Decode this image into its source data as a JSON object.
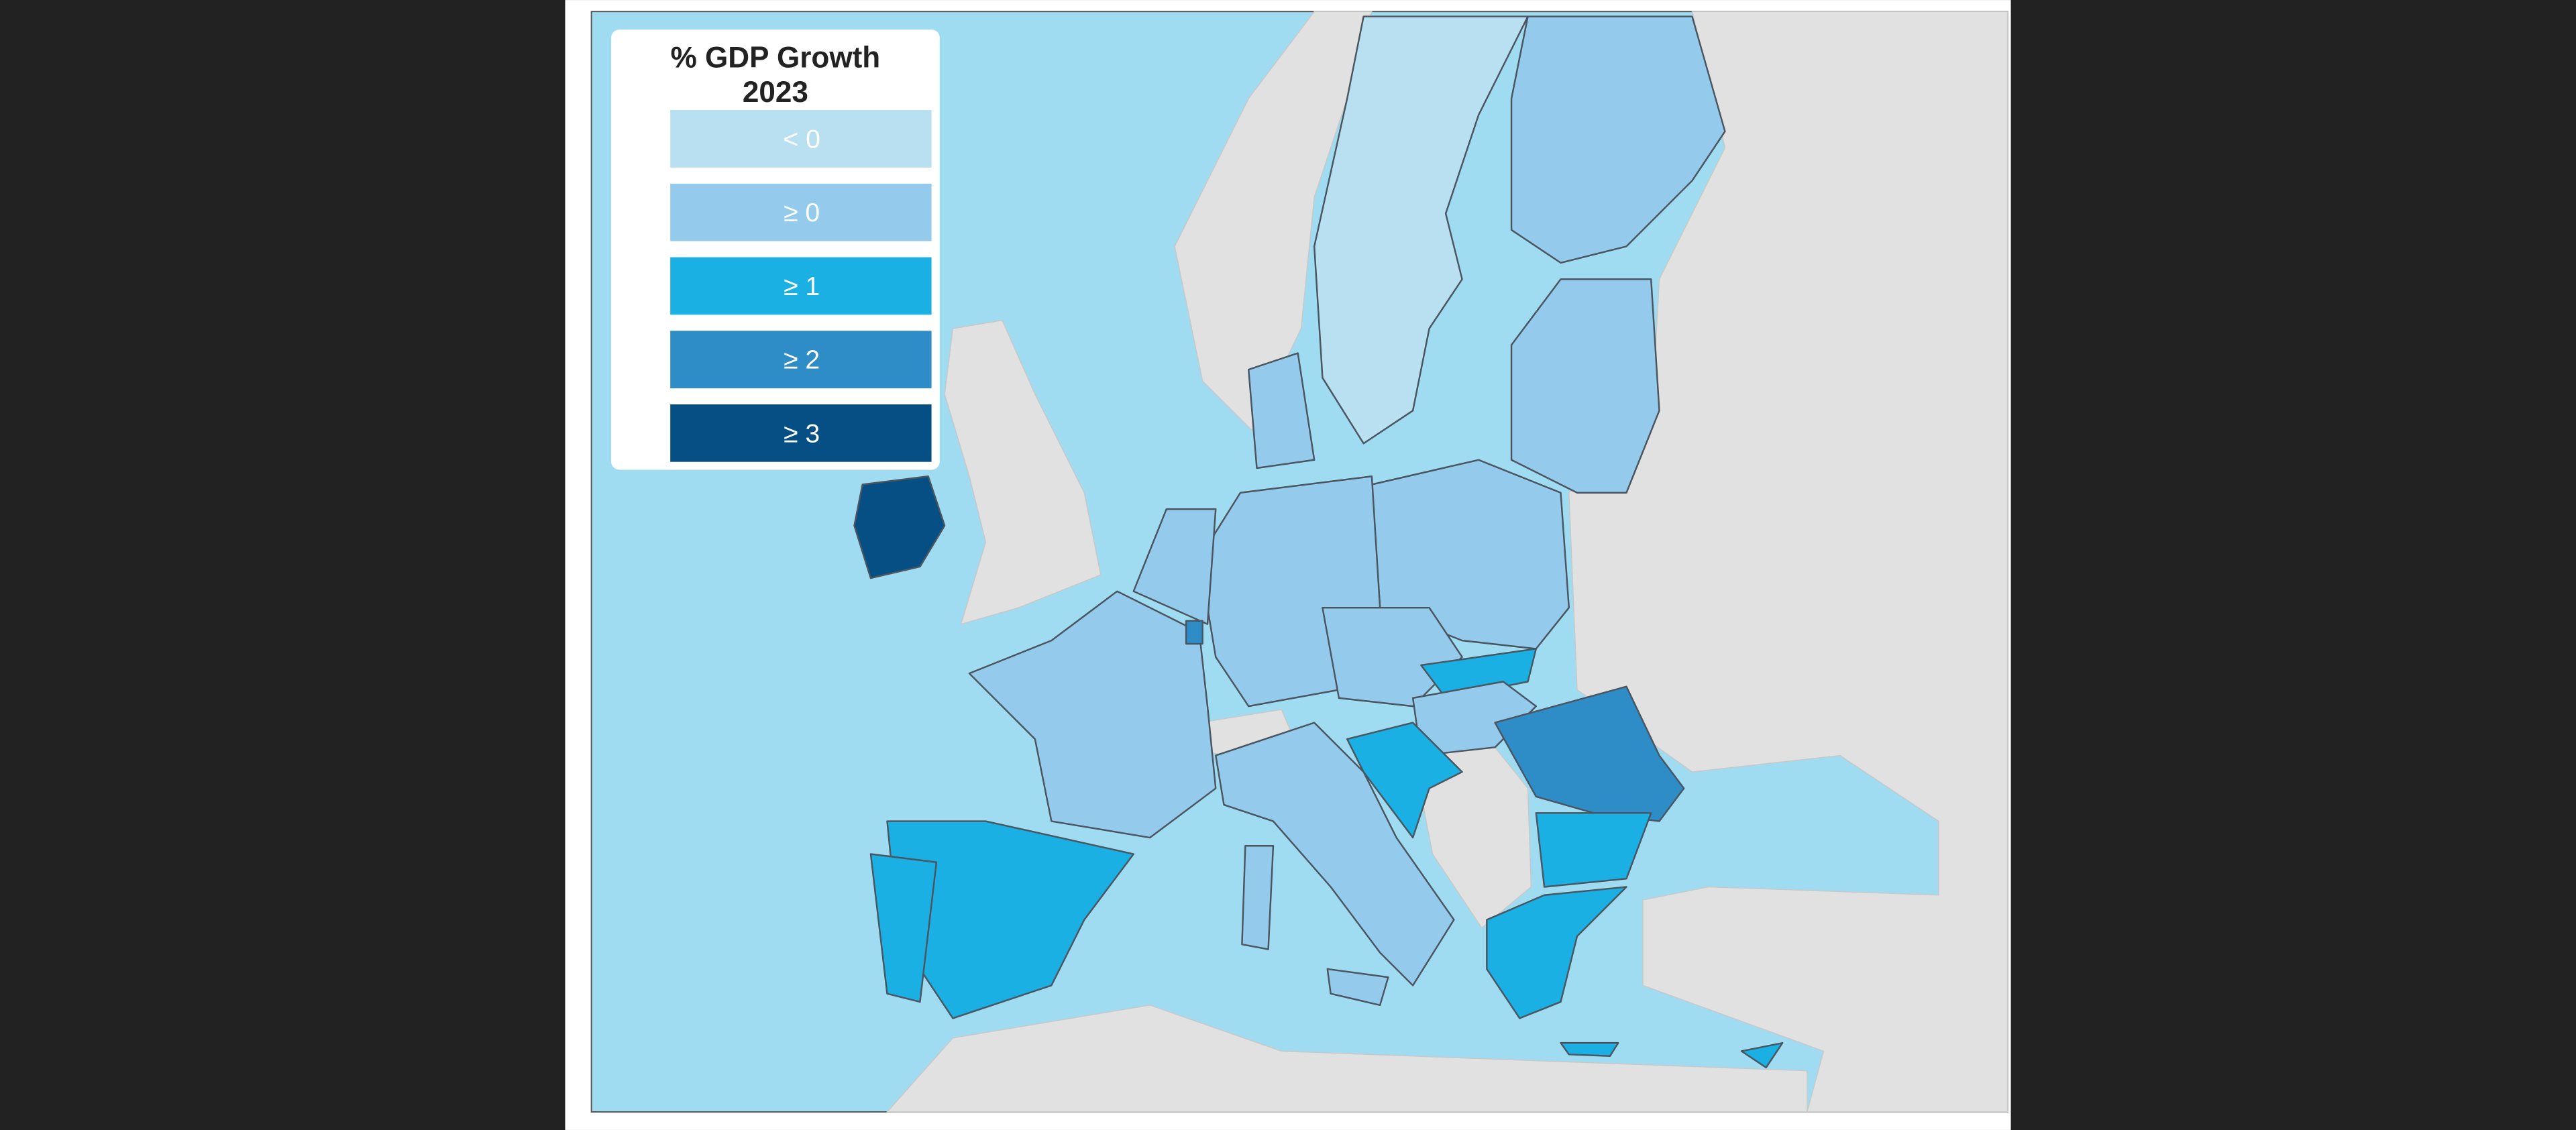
{
  "legend": {
    "title": [
      "% GDP Growth",
      "2023"
    ],
    "items": [
      {
        "label": "< 0",
        "color": "#b8e0f0"
      },
      {
        "label": "≥ 0",
        "color": "#94caeb"
      },
      {
        "label": "≥ 1",
        "color": "#1ab0e3"
      },
      {
        "label": "≥ 2",
        "color": "#2e8cc7"
      },
      {
        "label": "≥ 3",
        "color": "#064f85"
      }
    ]
  }
}
